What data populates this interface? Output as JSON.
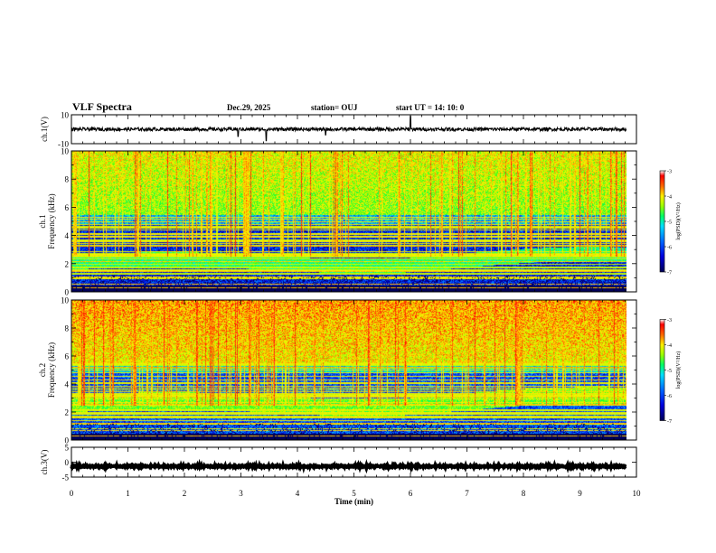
{
  "header": {
    "title": "VLF Spectra",
    "date": "Dec.29, 2025",
    "station": "station= OUJ",
    "start": "start  UT =   14: 10: 0"
  },
  "chart_data": {
    "type": "heatmap",
    "title": "VLF Spectra",
    "xlabel": "Time  (min)",
    "x_ticks": [
      "0",
      "1",
      "2",
      "3",
      "4",
      "5",
      "6",
      "7",
      "8",
      "9",
      "10"
    ],
    "xlim": [
      0,
      10
    ],
    "data_end_min": 9.82,
    "panels": [
      {
        "id": "ch1-voltage",
        "label": "ch.1(V)",
        "kind": "line",
        "ylim": [
          -10,
          10
        ],
        "y_ticks": [
          "10",
          "-10"
        ],
        "baseline": 0,
        "noise_amplitude": 1.2,
        "spikes": [
          {
            "t": 3.45,
            "v": -8
          },
          {
            "t": 6.0,
            "v": 9
          },
          {
            "t": 4.5,
            "v": -4
          },
          {
            "t": 2.95,
            "v": -5
          }
        ]
      },
      {
        "id": "ch1-spectrogram",
        "label": "ch.1",
        "ylabel": "Frequency  (kHz)",
        "kind": "spectrogram",
        "ylim": [
          0,
          10
        ],
        "y_ticks": [
          "0",
          "2",
          "4",
          "6",
          "8",
          "10"
        ],
        "colorbar": {
          "label": "log(PSD)(V²/Hz)",
          "range": [
            -7,
            -3
          ],
          "ticks": [
            "-3",
            "-4",
            "-5",
            "-6",
            "-7"
          ]
        },
        "hiss_band_khz": [
          1.6,
          2.6
        ],
        "hiss_level": -5.2,
        "high_band_level": -4.7,
        "background_level": -6.4,
        "line_frequencies_khz": [
          0.3,
          0.6,
          1.0,
          1.5,
          2.2,
          2.9,
          3.3,
          3.6,
          4.1,
          4.6,
          5.0,
          5.3
        ]
      },
      {
        "id": "ch2-spectrogram",
        "label": "ch.2",
        "ylabel": "Frequency  (kHz)",
        "kind": "spectrogram",
        "ylim": [
          0,
          10
        ],
        "y_ticks": [
          "0",
          "2",
          "4",
          "6",
          "8",
          "10"
        ],
        "colorbar": {
          "label": "log(PSD)(V²/Hz)",
          "range": [
            -7,
            -3
          ],
          "ticks": [
            "-3",
            "-4",
            "-5",
            "-6",
            "-7"
          ]
        },
        "hiss_band_khz": [
          2.0,
          3.2
        ],
        "hiss_level": -4.8,
        "high_band_level": -4.3,
        "background_level": -6.2,
        "line_frequencies_khz": [
          0.3,
          0.7,
          1.2,
          1.7,
          2.6,
          3.1,
          3.5,
          3.9,
          4.3,
          5.2
        ]
      },
      {
        "id": "ch3-voltage",
        "label": "ch.3(V)",
        "kind": "line",
        "ylim": [
          -5,
          5
        ],
        "y_ticks": [
          "5",
          "0",
          "-5"
        ],
        "baseline": -1.4,
        "noise_amplitude": 0.25,
        "spikes": []
      }
    ],
    "colors": {
      "trace": "#000000",
      "colormap": [
        "#000033",
        "#0000cc",
        "#0044ff",
        "#00bbff",
        "#00ffbb",
        "#22ff22",
        "#bbff00",
        "#ffee00",
        "#ff7700",
        "#ff0000",
        "#ffffff"
      ]
    }
  }
}
